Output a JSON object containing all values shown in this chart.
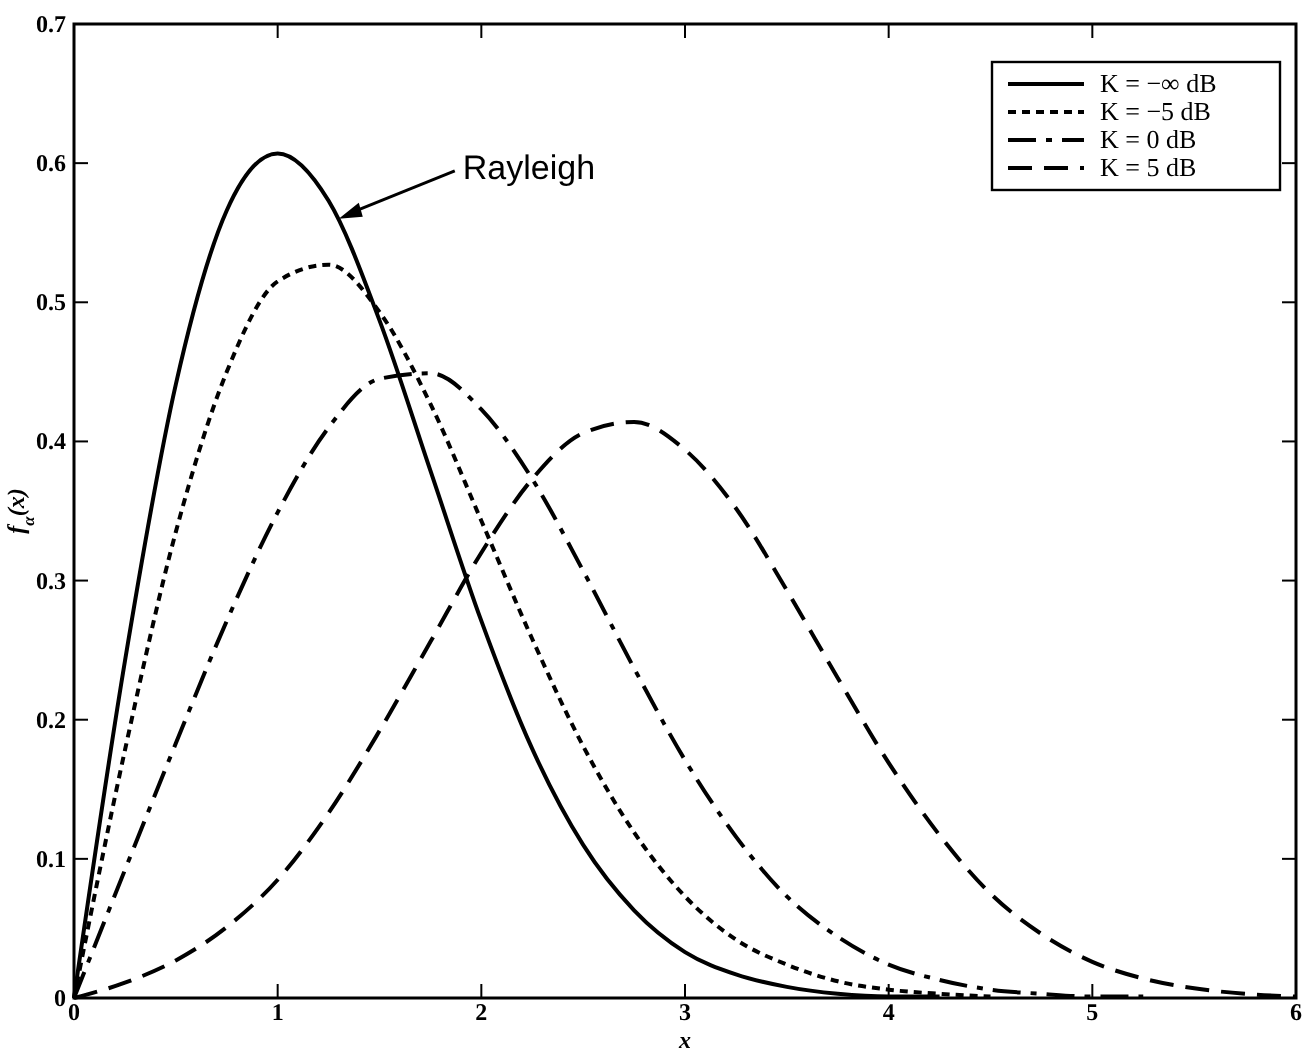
{
  "chart_data": {
    "type": "line",
    "xlabel": "x",
    "ylabel": "f$_{α}$(x)",
    "x": [
      0,
      0.25,
      0.5,
      0.75,
      1,
      1.25,
      1.5,
      1.75,
      2,
      2.25,
      2.5,
      2.75,
      3,
      3.25,
      3.5,
      3.75,
      4,
      4.25,
      4.5,
      4.75,
      5,
      5.25,
      5.5,
      5.75,
      6
    ],
    "series": [
      {
        "name": "K = −∞ dB",
        "color": "#000000",
        "line_style": "solid",
        "values": [
          0,
          0.242,
          0.441,
          0.566,
          0.607,
          0.573,
          0.487,
          0.379,
          0.271,
          0.179,
          0.11,
          0.063,
          0.033,
          0.017,
          0.008,
          0.003,
          0.001,
          0.001,
          null,
          null,
          null,
          null,
          null,
          null,
          null
        ]
      },
      {
        "name": "K = −5 dB",
        "color": "#000000",
        "line_style": "dotted",
        "values": [
          0,
          0.178,
          0.335,
          0.45,
          0.515,
          0.527,
          0.493,
          0.427,
          0.343,
          0.258,
          0.181,
          0.119,
          0.073,
          0.042,
          0.024,
          0.012,
          0.006,
          0.003,
          0.001,
          null,
          null,
          null,
          null,
          null,
          null
        ]
      },
      {
        "name": "K = 0 dB",
        "color": "#000000",
        "line_style": "dashdot",
        "values": [
          0,
          0.092,
          0.183,
          0.271,
          0.349,
          0.41,
          0.445,
          0.449,
          0.423,
          0.373,
          0.307,
          0.237,
          0.171,
          0.116,
          0.073,
          0.044,
          0.024,
          0.013,
          0.006,
          0.003,
          0.001,
          0.001,
          null,
          null,
          null
        ]
      },
      {
        "name": "K = 5 dB",
        "color": "#000000",
        "line_style": "dashed",
        "values": [
          0,
          0.011,
          0.027,
          0.051,
          0.085,
          0.133,
          0.192,
          0.256,
          0.32,
          0.373,
          0.406,
          0.414,
          0.394,
          0.352,
          0.293,
          0.23,
          0.169,
          0.117,
          0.075,
          0.046,
          0.026,
          0.014,
          0.007,
          0.003,
          0.001
        ]
      }
    ],
    "xlim": [
      0,
      6
    ],
    "ylim": [
      0,
      0.7
    ],
    "xticks": [
      0,
      1,
      2,
      3,
      4,
      5,
      6
    ],
    "yticks": [
      0,
      0.1,
      0.2,
      0.3,
      0.4,
      0.5,
      0.6,
      0.7
    ],
    "grid": false,
    "legend": "top right",
    "marker": "none",
    "annotations": [
      {
        "text": "Rayleigh",
        "x": 1.3,
        "y": 0.56
      }
    ]
  }
}
